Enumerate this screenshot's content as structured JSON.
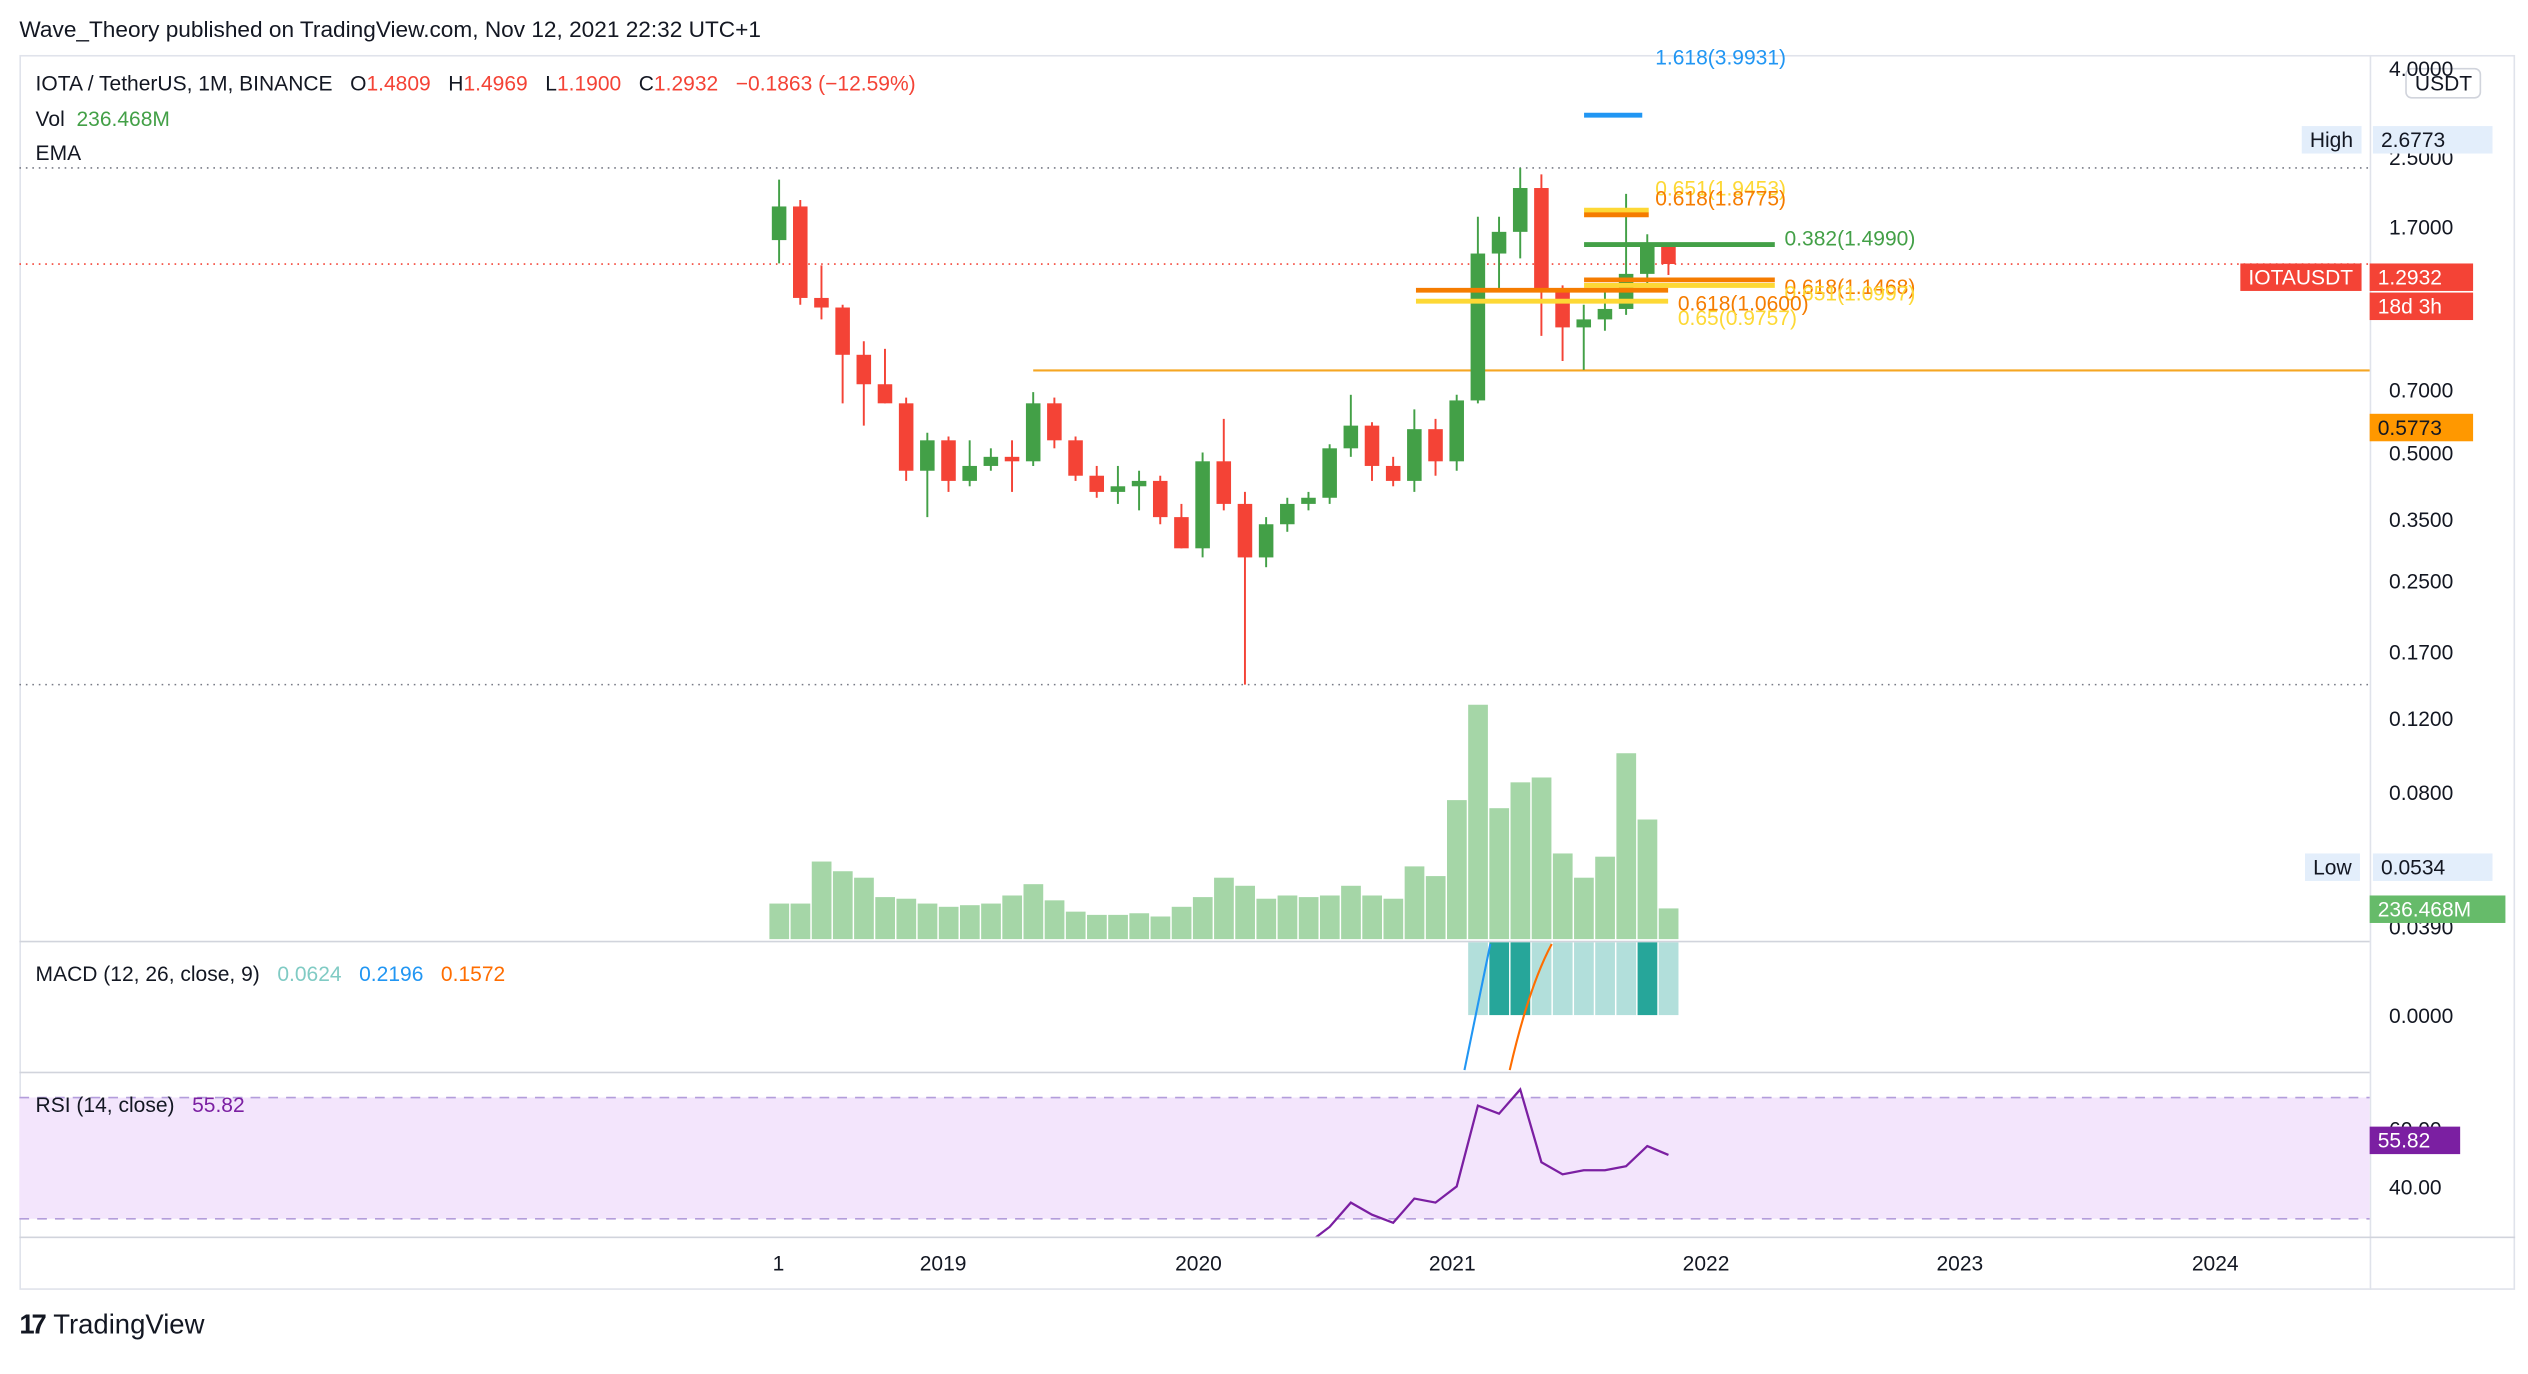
{
  "publisher": {
    "text": "Wave_Theory published on TradingView.com, Nov 12, 2021 22:32 UTC+1"
  },
  "legend": {
    "symbol": "IOTA / TetherUS, 1M, BINANCE",
    "o_label": "O",
    "o_value": "1.4809",
    "h_label": "H",
    "h_value": "1.4969",
    "l_label": "L",
    "l_value": "1.1900",
    "c_label": "C",
    "c_value": "1.2932",
    "change": "−0.1863 (−12.59%)",
    "vol_label": "Vol",
    "vol_value": "236.468M",
    "ema_label": "EMA"
  },
  "currency": "USDT",
  "price_axis": {
    "ticks": [
      "4.0000",
      "2.5000",
      "1.7000",
      "0.7000",
      "0.5000",
      "0.3500",
      "0.2500",
      "0.1700",
      "0.1200",
      "0.0800",
      "0.0390"
    ],
    "high_label": "High",
    "high_value": "2.6773",
    "low_label": "Low",
    "low_value": "0.0534",
    "symbol_tag": "IOTAUSDT",
    "last_price": "1.2932",
    "countdown": "18d 3h",
    "level_value": "0.5773",
    "volume_value": "236.468M"
  },
  "fib_labels": {
    "fib_1618": "1.618(3.9931)",
    "fib_0651_top": "0.651(1.9453)",
    "fib_0618_top": "0.618(1.8775)",
    "fib_0382": "0.382(1.4990)",
    "fib_0618_mid": "0.618(1.1468)",
    "fib_0651_mid": "0.651(1.0997)",
    "fib_0618_low": "0.618(1.0600)",
    "fib_065_low": "0.65(0.9757)"
  },
  "macd": {
    "label": "MACD (12, 26, close, 9)",
    "v1": "0.0624",
    "v2": "0.2196",
    "v3": "0.1572",
    "axis_zero": "0.0000",
    "colors": {
      "hist": "#b2dfdb",
      "hist_strong": "#26a69a",
      "macd": "#2196f3",
      "signal": "#ff6d00"
    }
  },
  "rsi": {
    "label": "RSI (14, close)",
    "value": "55.82",
    "axis_60": "60.00",
    "axis_40": "40.00",
    "colors": {
      "line": "#7b1fa2",
      "band": "#f3e5fc"
    }
  },
  "time_axis": [
    "1",
    "2019",
    "2020",
    "2021",
    "2022",
    "2023",
    "2024"
  ],
  "brand": "TradingView",
  "colors": {
    "up": "#43a047",
    "down": "#f44336",
    "vol": "#a5d6a7",
    "level": "#f5a623",
    "fib_green": "#43a047",
    "fib_orange": "#f57c00",
    "fib_yellow": "#fdd835",
    "fib_blue": "#2196f3"
  },
  "chart_data": {
    "type": "candlestick",
    "title": "IOTA / TetherUS, 1M, BINANCE",
    "y_scale": "log",
    "ylim": [
      0.039,
      4.0
    ],
    "x_range": [
      "2018-05",
      "2024-06"
    ],
    "candles": [
      {
        "t": "2018-05",
        "o": 1.55,
        "h": 2.45,
        "l": 1.3,
        "c": 2.0
      },
      {
        "t": "2018-06",
        "o": 2.0,
        "h": 2.1,
        "l": 0.95,
        "c": 1.0
      },
      {
        "t": "2018-07",
        "o": 1.0,
        "h": 1.28,
        "l": 0.85,
        "c": 0.93
      },
      {
        "t": "2018-08",
        "o": 0.93,
        "h": 0.95,
        "l": 0.45,
        "c": 0.65
      },
      {
        "t": "2018-09",
        "o": 0.65,
        "h": 0.72,
        "l": 0.38,
        "c": 0.52
      },
      {
        "t": "2018-10",
        "o": 0.52,
        "h": 0.68,
        "l": 0.45,
        "c": 0.45
      },
      {
        "t": "2018-11",
        "o": 0.45,
        "h": 0.47,
        "l": 0.25,
        "c": 0.27
      },
      {
        "t": "2018-12",
        "o": 0.27,
        "h": 0.36,
        "l": 0.19,
        "c": 0.34
      },
      {
        "t": "2019-01",
        "o": 0.34,
        "h": 0.35,
        "l": 0.23,
        "c": 0.25
      },
      {
        "t": "2019-02",
        "o": 0.25,
        "h": 0.34,
        "l": 0.24,
        "c": 0.28
      },
      {
        "t": "2019-03",
        "o": 0.28,
        "h": 0.32,
        "l": 0.27,
        "c": 0.3
      },
      {
        "t": "2019-04",
        "o": 0.3,
        "h": 0.34,
        "l": 0.23,
        "c": 0.29
      },
      {
        "t": "2019-05",
        "o": 0.29,
        "h": 0.49,
        "l": 0.28,
        "c": 0.45
      },
      {
        "t": "2019-06",
        "o": 0.45,
        "h": 0.47,
        "l": 0.32,
        "c": 0.34
      },
      {
        "t": "2019-07",
        "o": 0.34,
        "h": 0.35,
        "l": 0.25,
        "c": 0.26
      },
      {
        "t": "2019-08",
        "o": 0.26,
        "h": 0.28,
        "l": 0.22,
        "c": 0.23
      },
      {
        "t": "2019-09",
        "o": 0.23,
        "h": 0.28,
        "l": 0.21,
        "c": 0.24
      },
      {
        "t": "2019-10",
        "o": 0.24,
        "h": 0.27,
        "l": 0.2,
        "c": 0.25
      },
      {
        "t": "2019-11",
        "o": 0.25,
        "h": 0.26,
        "l": 0.18,
        "c": 0.19
      },
      {
        "t": "2019-12",
        "o": 0.19,
        "h": 0.21,
        "l": 0.15,
        "c": 0.15
      },
      {
        "t": "2020-01",
        "o": 0.15,
        "h": 0.31,
        "l": 0.14,
        "c": 0.29
      },
      {
        "t": "2020-02",
        "o": 0.29,
        "h": 0.4,
        "l": 0.2,
        "c": 0.21
      },
      {
        "t": "2020-03",
        "o": 0.21,
        "h": 0.23,
        "l": 0.0534,
        "c": 0.14
      },
      {
        "t": "2020-04",
        "o": 0.14,
        "h": 0.19,
        "l": 0.13,
        "c": 0.18
      },
      {
        "t": "2020-05",
        "o": 0.18,
        "h": 0.22,
        "l": 0.17,
        "c": 0.21
      },
      {
        "t": "2020-06",
        "o": 0.21,
        "h": 0.23,
        "l": 0.2,
        "c": 0.22
      },
      {
        "t": "2020-07",
        "o": 0.22,
        "h": 0.33,
        "l": 0.21,
        "c": 0.32
      },
      {
        "t": "2020-08",
        "o": 0.32,
        "h": 0.48,
        "l": 0.3,
        "c": 0.38
      },
      {
        "t": "2020-09",
        "o": 0.38,
        "h": 0.39,
        "l": 0.25,
        "c": 0.28
      },
      {
        "t": "2020-10",
        "o": 0.28,
        "h": 0.3,
        "l": 0.24,
        "c": 0.25
      },
      {
        "t": "2020-11",
        "o": 0.25,
        "h": 0.43,
        "l": 0.23,
        "c": 0.37
      },
      {
        "t": "2020-12",
        "o": 0.37,
        "h": 0.4,
        "l": 0.26,
        "c": 0.29
      },
      {
        "t": "2021-01",
        "o": 0.29,
        "h": 0.48,
        "l": 0.27,
        "c": 0.46
      },
      {
        "t": "2021-02",
        "o": 0.46,
        "h": 1.85,
        "l": 0.45,
        "c": 1.4
      },
      {
        "t": "2021-03",
        "o": 1.4,
        "h": 1.85,
        "l": 1.05,
        "c": 1.65
      },
      {
        "t": "2021-04",
        "o": 1.65,
        "h": 2.6773,
        "l": 1.35,
        "c": 2.3
      },
      {
        "t": "2021-05",
        "o": 2.3,
        "h": 2.55,
        "l": 0.75,
        "c": 1.05
      },
      {
        "t": "2021-06",
        "o": 1.05,
        "h": 1.1,
        "l": 0.62,
        "c": 0.8
      },
      {
        "t": "2021-07",
        "o": 0.8,
        "h": 0.95,
        "l": 0.58,
        "c": 0.85
      },
      {
        "t": "2021-08",
        "o": 0.85,
        "h": 1.05,
        "l": 0.78,
        "c": 0.92
      },
      {
        "t": "2021-09",
        "o": 0.92,
        "h": 2.2,
        "l": 0.88,
        "c": 1.2
      },
      {
        "t": "2021-10",
        "o": 1.2,
        "h": 1.62,
        "l": 1.1,
        "c": 1.48
      },
      {
        "t": "2021-11",
        "o": 1.4809,
        "h": 1.4969,
        "l": 1.19,
        "c": 1.2932
      }
    ],
    "volume": [
      0.22,
      0.22,
      0.48,
      0.42,
      0.38,
      0.26,
      0.25,
      0.22,
      0.2,
      0.21,
      0.22,
      0.27,
      0.34,
      0.24,
      0.17,
      0.15,
      0.15,
      0.16,
      0.14,
      0.2,
      0.26,
      0.38,
      0.33,
      0.25,
      0.27,
      0.26,
      0.27,
      0.33,
      0.27,
      0.25,
      0.45,
      0.39,
      0.86,
      1.45,
      0.81,
      0.97,
      1.0,
      0.53,
      0.38,
      0.51,
      1.15,
      0.74,
      0.19
    ],
    "volume_unit": "relative",
    "horizontal_levels": [
      {
        "value": 0.5773,
        "from": "2019-05",
        "to": "end"
      }
    ],
    "fib_levels": [
      {
        "label": "1.618",
        "value": 3.9931
      },
      {
        "label": "0.651",
        "value": 1.9453
      },
      {
        "label": "0.618",
        "value": 1.8775
      },
      {
        "label": "0.382",
        "value": 1.499
      },
      {
        "label": "0.618",
        "value": 1.1468
      },
      {
        "label": "0.651",
        "value": 1.0997
      },
      {
        "label": "0.618",
        "value": 1.06
      },
      {
        "label": "0.65",
        "value": 0.9757
      }
    ],
    "macd_hist": [
      0.05,
      0.05,
      0.05,
      0.05,
      0.05,
      0.05,
      0.05,
      0.05,
      0.05,
      0.05
    ],
    "rsi": [
      {
        "t": "2020-05",
        "v": 31
      },
      {
        "t": "2020-06",
        "v": 34
      },
      {
        "t": "2020-07",
        "v": 38
      },
      {
        "t": "2020-08",
        "v": 44
      },
      {
        "t": "2020-09",
        "v": 41
      },
      {
        "t": "2020-10",
        "v": 39
      },
      {
        "t": "2020-11",
        "v": 45
      },
      {
        "t": "2020-12",
        "v": 44
      },
      {
        "t": "2021-01",
        "v": 48
      },
      {
        "t": "2021-02",
        "v": 68
      },
      {
        "t": "2021-03",
        "v": 66
      },
      {
        "t": "2021-04",
        "v": 72
      },
      {
        "t": "2021-05",
        "v": 54
      },
      {
        "t": "2021-06",
        "v": 51
      },
      {
        "t": "2021-07",
        "v": 52
      },
      {
        "t": "2021-08",
        "v": 52
      },
      {
        "t": "2021-09",
        "v": 53
      },
      {
        "t": "2021-10",
        "v": 58
      },
      {
        "t": "2021-11",
        "v": 55.82
      }
    ],
    "rsi_band": [
      40,
      70
    ]
  }
}
